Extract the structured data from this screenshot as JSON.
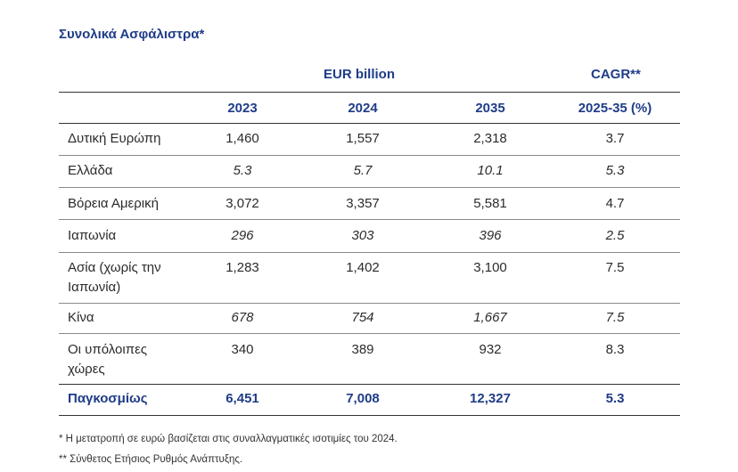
{
  "title": "Συνολικά Ασφάλιστρα*",
  "group_headers": {
    "eur": "EUR billion",
    "cagr": "CAGR**"
  },
  "columns": [
    "2023",
    "2024",
    "2035",
    "2025-35 (%)"
  ],
  "rows": [
    {
      "label": "Δυτική Ευρώπη",
      "values": [
        "1,460",
        "1,557",
        "2,318",
        "3.7"
      ],
      "italic": false
    },
    {
      "label": "Ελλάδα",
      "values": [
        "5.3",
        "5.7",
        "10.1",
        "5.3"
      ],
      "italic": true
    },
    {
      "label": "Βόρεια Αμερική",
      "values": [
        "3,072",
        "3,357",
        "5,581",
        "4.7"
      ],
      "italic": false
    },
    {
      "label": "Ιαπωνία",
      "values": [
        "296",
        "303",
        "396",
        "2.5"
      ],
      "italic": true
    },
    {
      "label": "Ασία (χωρίς την Ιαπωνία)",
      "values": [
        "1,283",
        "1,402",
        "3,100",
        "7.5"
      ],
      "italic": false
    },
    {
      "label": "Κίνα",
      "values": [
        "678",
        "754",
        "1,667",
        "7.5"
      ],
      "italic": true
    },
    {
      "label": "Οι υπόλοιπες χώρες",
      "values": [
        "340",
        "389",
        "932",
        "8.3"
      ],
      "italic": false
    }
  ],
  "total": {
    "label": "Παγκοσμίως",
    "values": [
      "6,451",
      "7,008",
      "12,327",
      "5.3"
    ]
  },
  "footnotes": [
    "*  Η μετατροπή σε ευρώ βασίζεται στις συναλλαγματικές ισοτιμίες του 2024.",
    "**  Σύνθετος Ετήσιος Ρυθμός Ανάπτυξης."
  ]
}
